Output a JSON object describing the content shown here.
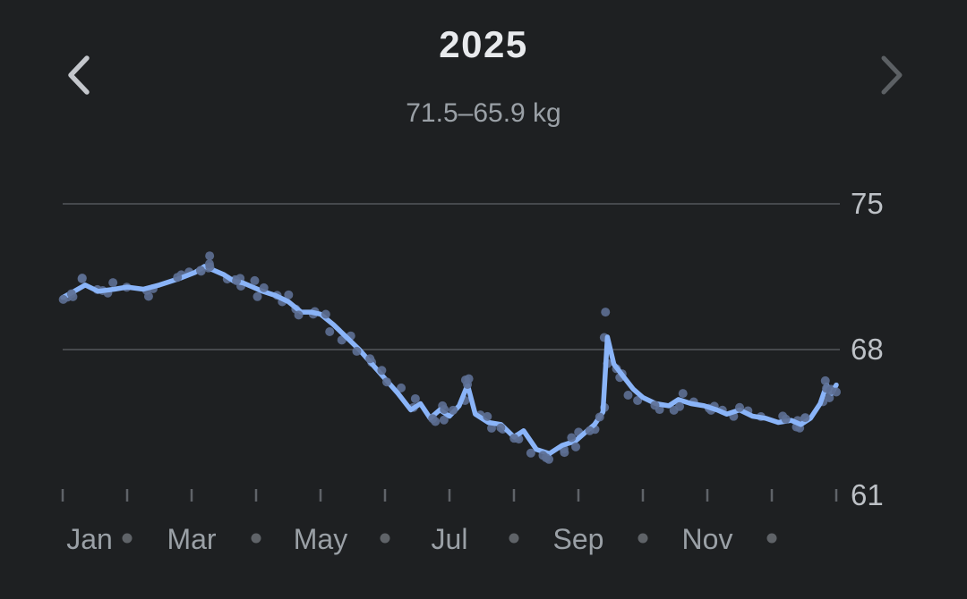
{
  "header": {
    "title": "2025",
    "subtitle": "71.5–65.9 kg"
  },
  "nav": {
    "prev_enabled": true,
    "next_enabled": false
  },
  "colors": {
    "background": "#1e2022",
    "title": "#e8eaed",
    "subtitle": "#9aa0a6",
    "grid": "#46494d",
    "axis_label": "#bdc1c6",
    "month_label": "#9aa0a6",
    "month_dot": "#5f6368",
    "tick": "#5f6368",
    "line": "#8ab4f8",
    "scatter": "#5d6f93",
    "chevron_active": "#c4c7cc",
    "chevron_dim": "#5c6064"
  },
  "chart_data": {
    "type": "line",
    "title": "2025",
    "range_label": "71.5–65.9 kg",
    "unit": "kg",
    "ylim": [
      61,
      75
    ],
    "y_tick_labels": [
      75,
      68,
      61
    ],
    "gridline_values": [
      75,
      68
    ],
    "grid": "horizontal-only",
    "legend": "none",
    "x_axis": {
      "months": [
        "Jan",
        "Feb",
        "Mar",
        "Apr",
        "May",
        "Jun",
        "Jul",
        "Aug",
        "Sep",
        "Oct",
        "Nov",
        "Dec"
      ],
      "labeled_months": [
        "Jan",
        "Mar",
        "May",
        "Jul",
        "Sep",
        "Nov"
      ],
      "unlabeled_months_shown_as": "dot"
    },
    "trend_series": {
      "name": "weight-trend",
      "points": [
        [
          0.0,
          70.5
        ],
        [
          0.18,
          70.8
        ],
        [
          0.35,
          71.1
        ],
        [
          0.55,
          70.8
        ],
        [
          0.8,
          70.9
        ],
        [
          1.0,
          71.0
        ],
        [
          1.25,
          70.9
        ],
        [
          1.5,
          71.1
        ],
        [
          1.8,
          71.4
        ],
        [
          2.05,
          71.7
        ],
        [
          2.2,
          72.0
        ],
        [
          2.35,
          71.8
        ],
        [
          2.5,
          71.6
        ],
        [
          2.65,
          71.3
        ],
        [
          2.8,
          71.2
        ],
        [
          2.95,
          71.0
        ],
        [
          3.1,
          70.8
        ],
        [
          3.3,
          70.6
        ],
        [
          3.5,
          70.3
        ],
        [
          3.7,
          69.8
        ],
        [
          3.85,
          69.8
        ],
        [
          4.0,
          69.7
        ],
        [
          4.2,
          69.2
        ],
        [
          4.4,
          68.6
        ],
        [
          4.6,
          68.0
        ],
        [
          4.8,
          67.3
        ],
        [
          5.0,
          66.6
        ],
        [
          5.2,
          65.9
        ],
        [
          5.4,
          65.1
        ],
        [
          5.55,
          65.4
        ],
        [
          5.7,
          64.7
        ],
        [
          5.85,
          65.1
        ],
        [
          6.0,
          64.8
        ],
        [
          6.15,
          65.3
        ],
        [
          6.28,
          66.3
        ],
        [
          6.4,
          64.9
        ],
        [
          6.6,
          64.5
        ],
        [
          6.8,
          64.4
        ],
        [
          7.0,
          63.8
        ],
        [
          7.15,
          64.1
        ],
        [
          7.35,
          63.2
        ],
        [
          7.55,
          63.0
        ],
        [
          7.75,
          63.4
        ],
        [
          7.95,
          63.6
        ],
        [
          8.1,
          64.0
        ],
        [
          8.25,
          64.4
        ],
        [
          8.38,
          65.0
        ],
        [
          8.45,
          68.6
        ],
        [
          8.55,
          67.3
        ],
        [
          8.7,
          66.7
        ],
        [
          8.85,
          66.1
        ],
        [
          9.0,
          65.7
        ],
        [
          9.2,
          65.4
        ],
        [
          9.4,
          65.3
        ],
        [
          9.55,
          65.6
        ],
        [
          9.75,
          65.4
        ],
        [
          9.95,
          65.3
        ],
        [
          10.15,
          65.1
        ],
        [
          10.3,
          64.9
        ],
        [
          10.5,
          65.1
        ],
        [
          10.7,
          64.8
        ],
        [
          10.9,
          64.7
        ],
        [
          11.1,
          64.5
        ],
        [
          11.3,
          64.6
        ],
        [
          11.45,
          64.4
        ],
        [
          11.6,
          64.7
        ],
        [
          11.75,
          65.4
        ],
        [
          11.85,
          66.3
        ],
        [
          11.93,
          65.9
        ],
        [
          12.0,
          66.3
        ]
      ]
    },
    "outlier_readings": [
      [
        0.3,
        71.4
      ],
      [
        2.28,
        72.5
      ],
      [
        4.95,
        67.0
      ],
      [
        6.3,
        66.6
      ],
      [
        7.5,
        62.8
      ],
      [
        8.42,
        69.8
      ],
      [
        11.83,
        66.5
      ]
    ],
    "scatter": {
      "represents": "daily weight readings",
      "jitter_kg": 0.35,
      "jitter_month": 0.1
    }
  }
}
